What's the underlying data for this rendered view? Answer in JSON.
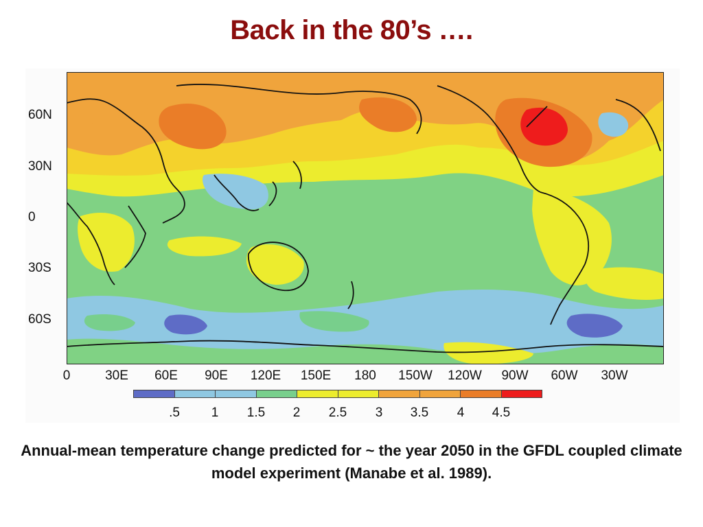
{
  "slide": {
    "title": "Back in the 80’s ….",
    "caption": "Annual-mean temperature change predicted for ~ the year 2050 in the GFDL coupled climate model experiment (Manabe et al. 1989)."
  },
  "map": {
    "lat_labels": [
      "60N",
      "30N",
      "0",
      "30S",
      "60S"
    ],
    "lon_labels": [
      "0",
      "30E",
      "60E",
      "90E",
      "120E",
      "150E",
      "180",
      "150W",
      "120W",
      "90W",
      "60W",
      "30W"
    ],
    "colors": {
      "band_0_5": "#5e6cc6",
      "band_1": "#8fc8e2",
      "band_1_5": "#78cf8c",
      "band_2": "#80d284",
      "band_2_5": "#ecec2e",
      "band_3": "#f4d22c",
      "band_3_5": "#f0a43c",
      "band_4": "#ea7d28",
      "band_4_5": "#ee1c1c",
      "coastline": "#111111"
    }
  },
  "legend": {
    "labels": [
      ".5",
      "1",
      "1.5",
      "2",
      "2.5",
      "3",
      "3.5",
      "4",
      "4.5"
    ],
    "colors": [
      "#5e6cc6",
      "#8fc8e2",
      "#8fc8e2",
      "#78cf8c",
      "#ecec2e",
      "#ecec2e",
      "#f0a43c",
      "#f0a43c",
      "#ea7d28",
      "#ee1c1c"
    ]
  }
}
